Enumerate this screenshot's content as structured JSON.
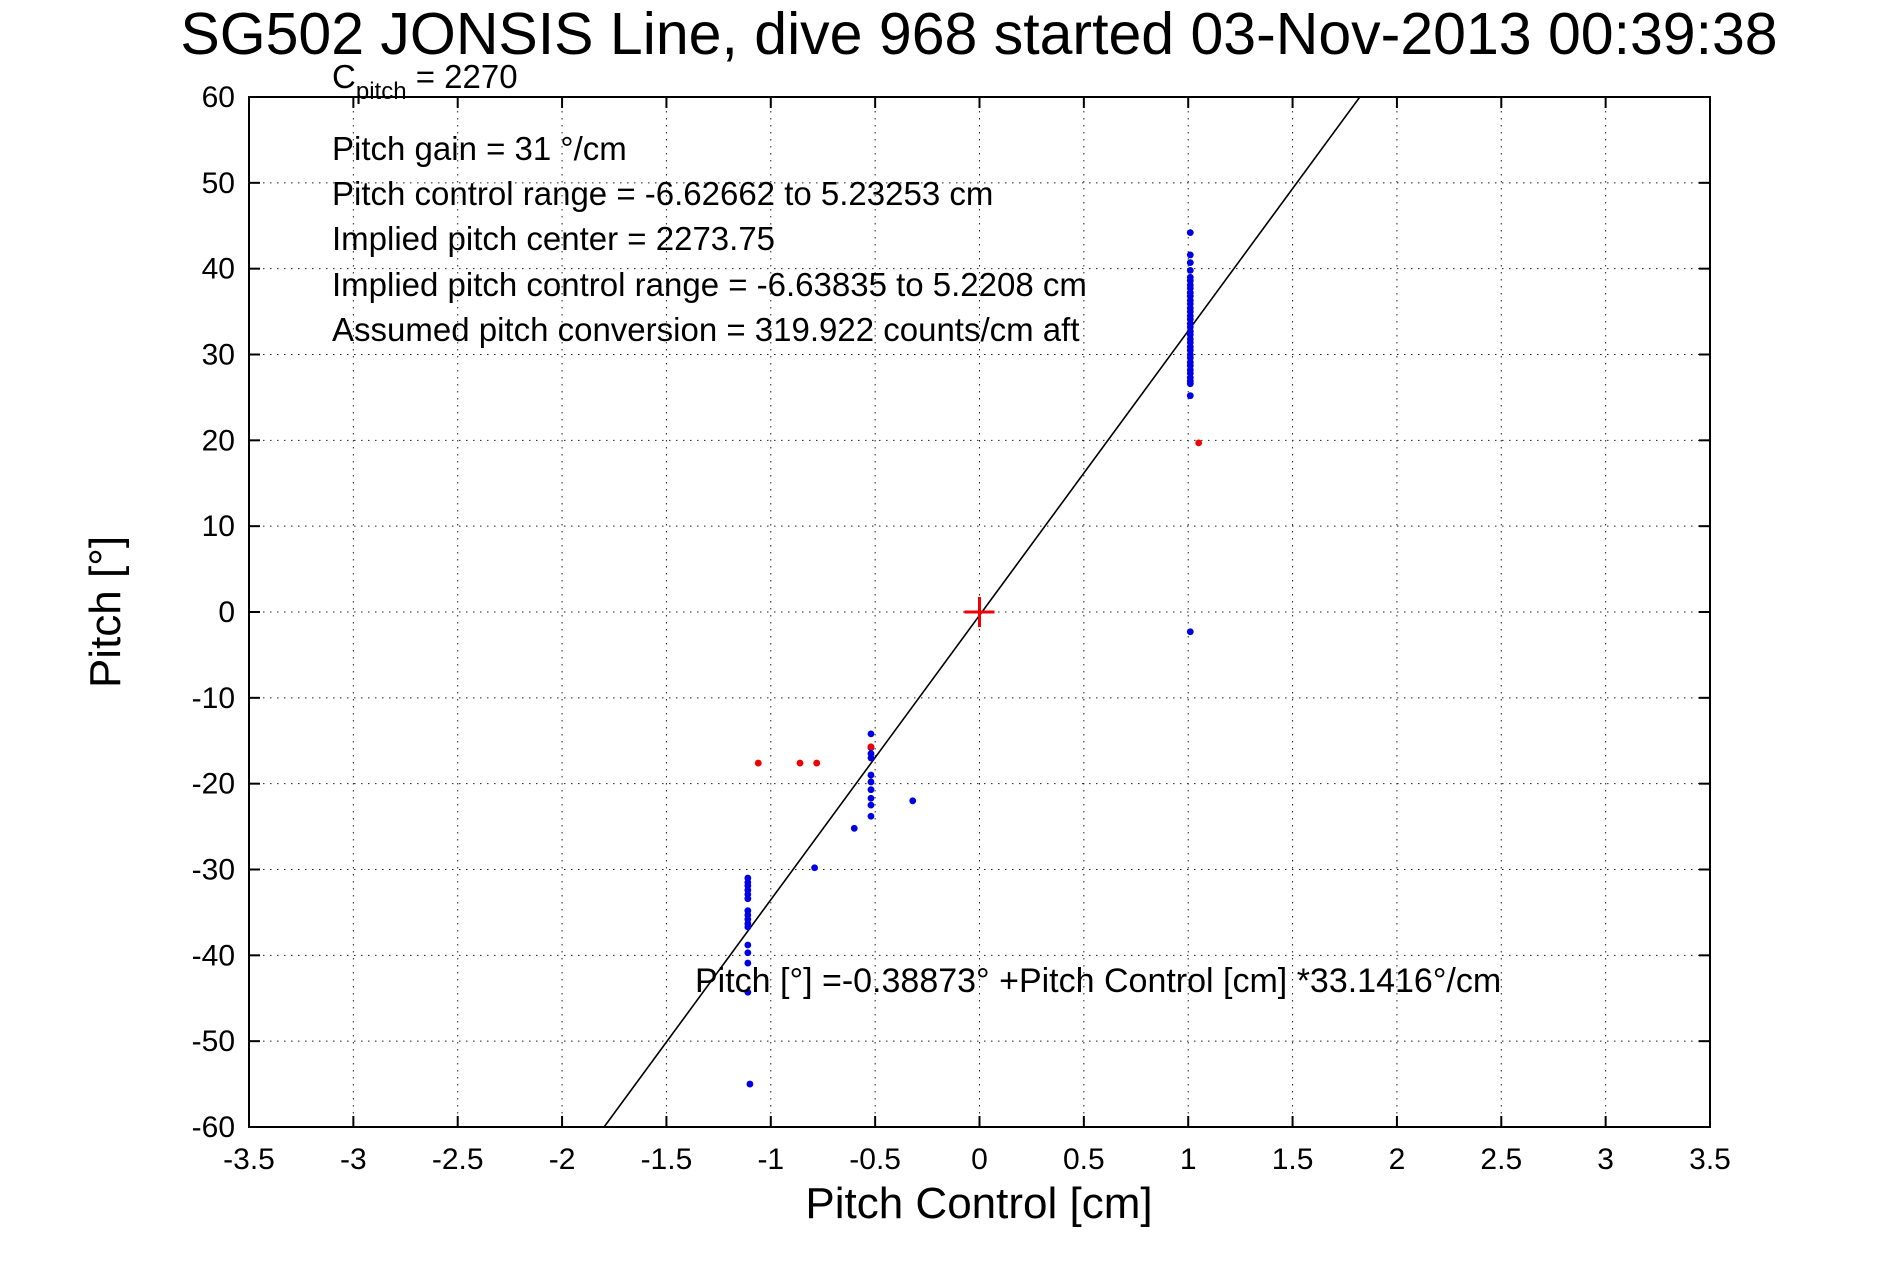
{
  "chart_data": {
    "type": "scatter",
    "title": "SG502 JONSIS Line, dive 968 started 03-Nov-2013 00:39:38",
    "xlabel": "Pitch Control [cm]",
    "ylabel": "Pitch [°]",
    "xlim": [
      -3.5,
      3.5
    ],
    "ylim": [
      -60,
      60
    ],
    "xticks": [
      -3.5,
      -3,
      -2.5,
      -2,
      -1.5,
      -1,
      -0.5,
      0,
      0.5,
      1,
      1.5,
      2,
      2.5,
      3,
      3.5
    ],
    "yticks": [
      -60,
      -50,
      -40,
      -30,
      -20,
      -10,
      0,
      10,
      20,
      30,
      40,
      50,
      60
    ],
    "grid": "dotted",
    "background_color": "#ffffff",
    "axis_color": "#000000",
    "grid_color": "#222222",
    "info_lines": [
      {
        "prefix": "C",
        "subscript": "pitch",
        "suffix": " = 2270"
      },
      {
        "text": "Pitch gain = 31 °/cm"
      },
      {
        "text": "Pitch control range = -6.62662 to 5.23253 cm"
      },
      {
        "text": "Implied pitch center = 2273.75"
      },
      {
        "text": "Implied pitch control range = -6.63835 to 5.2208 cm"
      },
      {
        "text": "Assumed pitch conversion = 319.922 counts/cm aft"
      }
    ],
    "equation_label": "Pitch [°] =-0.38873° +Pitch Control [cm] *33.1416°/cm",
    "fit_line": {
      "intercept_deg": -0.38873,
      "slope_deg_per_cm": 33.1416,
      "color": "#000000"
    },
    "series": [
      {
        "name": "observed-pitch-points",
        "color": "#0000e8",
        "marker": "point",
        "points": [
          [
            1.01,
            44.2
          ],
          [
            1.01,
            41.6
          ],
          [
            1.01,
            40.7
          ],
          [
            1.01,
            39.8
          ],
          [
            1.01,
            39.0
          ],
          [
            1.01,
            38.6
          ],
          [
            1.01,
            38.1
          ],
          [
            1.01,
            37.7
          ],
          [
            1.01,
            37.2
          ],
          [
            1.01,
            36.8
          ],
          [
            1.01,
            36.3
          ],
          [
            1.01,
            35.9
          ],
          [
            1.01,
            35.4
          ],
          [
            1.01,
            35.0
          ],
          [
            1.01,
            34.5
          ],
          [
            1.01,
            34.1
          ],
          [
            1.01,
            33.6
          ],
          [
            1.01,
            33.2
          ],
          [
            1.01,
            32.7
          ],
          [
            1.01,
            32.3
          ],
          [
            1.01,
            31.8
          ],
          [
            1.01,
            31.4
          ],
          [
            1.01,
            30.9
          ],
          [
            1.01,
            30.5
          ],
          [
            1.01,
            30.0
          ],
          [
            1.01,
            29.6
          ],
          [
            1.01,
            29.1
          ],
          [
            1.01,
            28.7
          ],
          [
            1.01,
            28.2
          ],
          [
            1.01,
            27.8
          ],
          [
            1.01,
            27.3
          ],
          [
            1.01,
            26.9
          ],
          [
            1.01,
            26.6
          ],
          [
            1.01,
            25.2
          ],
          [
            1.01,
            -2.3
          ],
          [
            -0.52,
            -14.2
          ],
          [
            -0.52,
            -15.8
          ],
          [
            -0.52,
            -16.5
          ],
          [
            -0.52,
            -17.0
          ],
          [
            -0.52,
            -19.0
          ],
          [
            -0.52,
            -19.8
          ],
          [
            -0.52,
            -20.7
          ],
          [
            -0.52,
            -21.7
          ],
          [
            -0.52,
            -22.5
          ],
          [
            -0.52,
            -23.8
          ],
          [
            -0.6,
            -25.2
          ],
          [
            -0.32,
            -22.0
          ],
          [
            -1.11,
            -31.0
          ],
          [
            -1.11,
            -31.5
          ],
          [
            -1.11,
            -31.9
          ],
          [
            -1.11,
            -32.4
          ],
          [
            -1.11,
            -32.9
          ],
          [
            -1.11,
            -33.4
          ],
          [
            -1.11,
            -34.8
          ],
          [
            -1.11,
            -35.3
          ],
          [
            -1.11,
            -35.8
          ],
          [
            -1.11,
            -36.3
          ],
          [
            -1.11,
            -36.7
          ],
          [
            -1.11,
            -38.8
          ],
          [
            -1.11,
            -39.7
          ],
          [
            -1.11,
            -40.9
          ],
          [
            -1.11,
            -44.3
          ],
          [
            -0.79,
            -29.8
          ],
          [
            -1.1,
            -55.0
          ]
        ]
      },
      {
        "name": "flagged-pitch-points",
        "color": "#f00000",
        "marker": "point",
        "points": [
          [
            -1.06,
            -17.6
          ],
          [
            -0.86,
            -17.6
          ],
          [
            -0.78,
            -17.6
          ],
          [
            -0.52,
            -15.7
          ],
          [
            1.05,
            19.7
          ]
        ]
      },
      {
        "name": "commanded-origin",
        "color": "#f00000",
        "marker": "plus",
        "points": [
          [
            0,
            0
          ]
        ]
      }
    ]
  }
}
